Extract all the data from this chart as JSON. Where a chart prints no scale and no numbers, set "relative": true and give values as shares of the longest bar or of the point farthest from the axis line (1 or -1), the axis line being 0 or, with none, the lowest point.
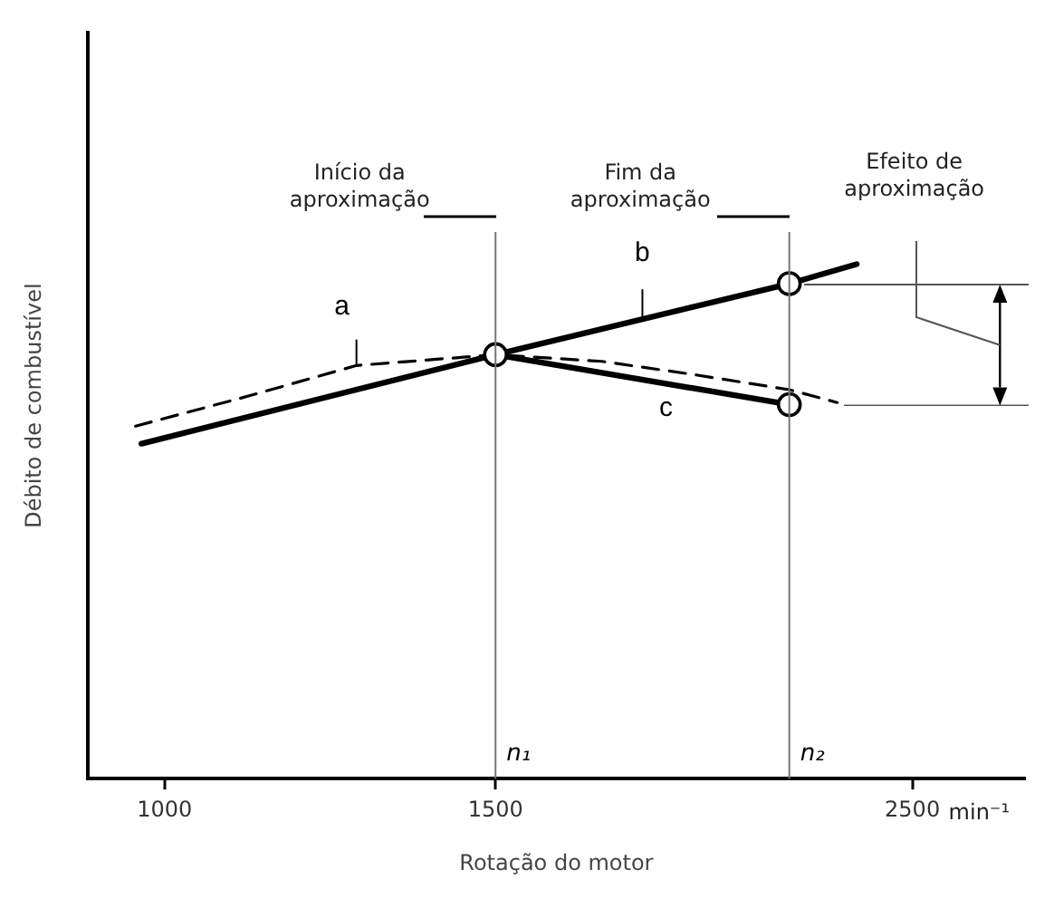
{
  "chart_data": {
    "type": "line",
    "xlabel": "Rotação do motor",
    "ylabel": "Débito de combustível",
    "relative": true,
    "log": "x",
    "xlim": [
      910,
      2870
    ],
    "xticks": [
      1000,
      1500,
      2500
    ],
    "series": [
      {
        "name": "a",
        "color": "#000000",
        "line_style": "dashed",
        "x": [
          965,
          1109,
          1265,
          1500,
          1709,
          1908,
          2150,
          2280
        ],
        "values": [
          0.685,
          0.744,
          0.803,
          0.824,
          0.811,
          0.786,
          0.756,
          0.731
        ]
      },
      {
        "name": "b",
        "color": "#000000",
        "line_style": "solid",
        "x": [
          972,
          1500,
          2150,
          2335
        ],
        "values": [
          0.651,
          0.824,
          0.962,
          1.0
        ]
      },
      {
        "name": "c",
        "color": "#000000",
        "line_style": "solid",
        "x": [
          1500,
          2150
        ],
        "values": [
          0.824,
          0.727
        ]
      },
      {
        "type": "scatter",
        "color": "#000000",
        "marker": "circle",
        "x": [
          1500,
          2150,
          2150
        ],
        "values": [
          0.824,
          0.962,
          0.727
        ]
      }
    ],
    "ref_lines": [
      {
        "axis": "x",
        "value": 1500,
        "label": "n₁"
      },
      {
        "axis": "x",
        "value": 2150,
        "label": "n₂"
      }
    ],
    "annotations": [
      "Início da aproximação",
      "Fim da aproximação",
      "Efeito de aproximação",
      "min⁻¹"
    ],
    "grid": false,
    "legend": false
  }
}
